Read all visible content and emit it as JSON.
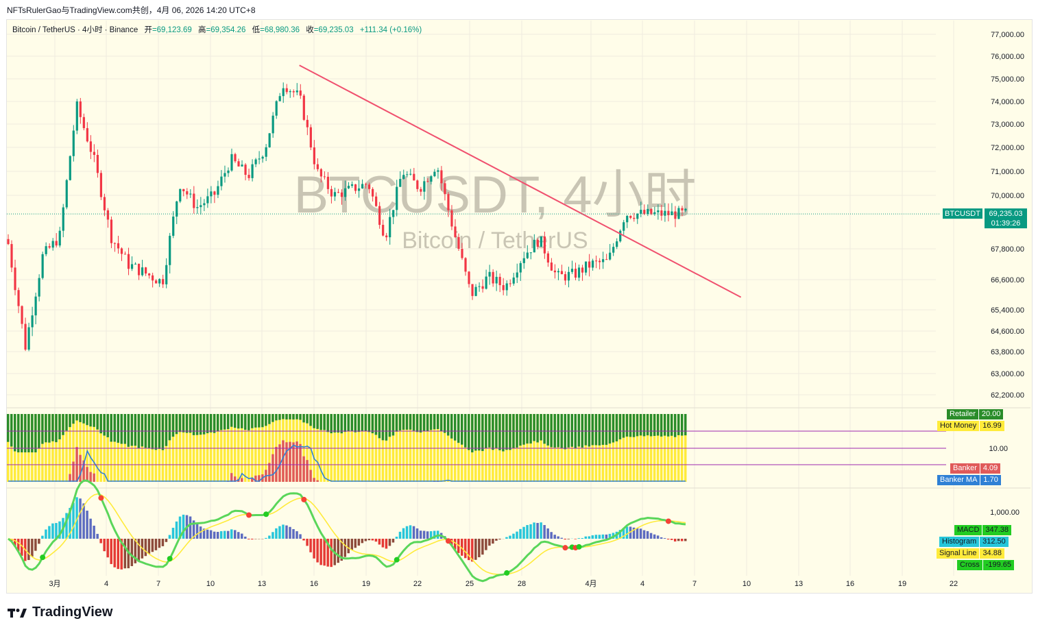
{
  "header": {
    "text": "NFTsRulerGao与TradingView.com共创，4月 06, 2026 14:20 UTC+8"
  },
  "legend": {
    "symbol": "Bitcoin / TetherUS · 4小时 · Binance",
    "open_label": "开",
    "open": "=69,123.69",
    "high_label": "高",
    "high": "=69,354.26",
    "low_label": "低",
    "low": "=68,980.36",
    "close_label": "收",
    "close": "=69,235.03",
    "change": "+111.34 (+0.16%)"
  },
  "watermark": {
    "title": "BTCUSDT, 4小时",
    "subtitle": "Bitcoin / TetherUS"
  },
  "footer": {
    "brand": "TradingView"
  },
  "colors": {
    "up": "#089981",
    "down": "#f23645",
    "trendline": "#f0506e",
    "background": "#fffde9",
    "retailer": "#2a8c2a",
    "hot_money": "#ffeb3b",
    "banker": "#e05a5a",
    "banker_ma": "#2f80d5"
  },
  "chart_data": [
    {
      "type": "candlestick",
      "title": "Bitcoin / TetherUS · 4小时 · Binance",
      "timeframe": "4h",
      "y_axis_ticks": [
        77000,
        76000,
        75000,
        74000,
        73000,
        72000,
        71000,
        70000,
        67800,
        66600,
        65400,
        64600,
        63800,
        63000,
        62200
      ],
      "y_axis_labels": [
        "77,000.00",
        "76,000.00",
        "75,000.00",
        "74,000.00",
        "73,000.00",
        "72,000.00",
        "71,000.00",
        "70,000.00",
        "67,800.00",
        "66,600.00",
        "65,400.00",
        "64,600.00",
        "63,800.00",
        "63,000.00",
        "62,200.00"
      ],
      "x_axis_labels": [
        "3月",
        "4",
        "7",
        "10",
        "13",
        "16",
        "19",
        "22",
        "25",
        "28",
        "4月",
        "4",
        "7",
        "10",
        "13",
        "16",
        "19",
        "22"
      ],
      "last_price_label": {
        "symbol": "BTCUSDT",
        "price": "69,235.03",
        "countdown": "01:39:26"
      },
      "approx_path": [
        {
          "x": "3月1",
          "y": 68000
        },
        {
          "x": "3月2",
          "y": 64000
        },
        {
          "x": "3月3",
          "y": 67500
        },
        {
          "x": "3月4",
          "y": 68300
        },
        {
          "x": "3月5",
          "y": 73800
        },
        {
          "x": "3月6",
          "y": 71500
        },
        {
          "x": "3月7",
          "y": 68300
        },
        {
          "x": "3月8",
          "y": 67200
        },
        {
          "x": "3月10",
          "y": 66500
        },
        {
          "x": "3月11",
          "y": 70500
        },
        {
          "x": "3月12",
          "y": 69500
        },
        {
          "x": "3月13",
          "y": 70000
        },
        {
          "x": "3月14",
          "y": 71500
        },
        {
          "x": "3月15",
          "y": 70800
        },
        {
          "x": "3月16",
          "y": 72000
        },
        {
          "x": "3月17",
          "y": 74800
        },
        {
          "x": "3月18",
          "y": 74200
        },
        {
          "x": "3月19",
          "y": 71000
        },
        {
          "x": "3月20",
          "y": 70000
        },
        {
          "x": "3月22",
          "y": 70500
        },
        {
          "x": "3月23",
          "y": 68300
        },
        {
          "x": "3月24",
          "y": 71000
        },
        {
          "x": "3月25",
          "y": 70300
        },
        {
          "x": "3月26",
          "y": 71300
        },
        {
          "x": "3月27",
          "y": 68500
        },
        {
          "x": "3月28",
          "y": 66000
        },
        {
          "x": "3月29",
          "y": 66700
        },
        {
          "x": "3月30",
          "y": 66300
        },
        {
          "x": "3月31",
          "y": 67500
        },
        {
          "x": "4月1",
          "y": 68200
        },
        {
          "x": "4月2",
          "y": 66700
        },
        {
          "x": "4月3",
          "y": 66800
        },
        {
          "x": "4月4",
          "y": 67200
        },
        {
          "x": "4月5",
          "y": 67300
        },
        {
          "x": "4月6",
          "y": 69235
        }
      ],
      "trendline": {
        "from": {
          "x": "3月16",
          "y": 75600
        },
        "to": {
          "x": "4月10",
          "y": 65900
        }
      }
    },
    {
      "type": "bar",
      "title": "",
      "series": [
        {
          "name": "Retailer",
          "last": "20.00"
        },
        {
          "name": "Hot Money",
          "last": "16.99"
        },
        {
          "name": "Banker",
          "last": "4.09"
        },
        {
          "name": "Banker MA",
          "last": "1.70"
        }
      ],
      "reference_lines": [
        16.99,
        10.0,
        4.09
      ],
      "y_axis_labels": [
        "10.00"
      ]
    },
    {
      "type": "bar",
      "title": "",
      "series": [
        {
          "name": "MACD",
          "last": "347.38"
        },
        {
          "name": "Histogram",
          "last": "312.50"
        },
        {
          "name": "Signal Line",
          "last": "34.88"
        },
        {
          "name": "Cross",
          "last": "-199.65"
        }
      ],
      "y_axis_labels": [
        "1,000.00"
      ]
    }
  ],
  "labels": {
    "retailer": {
      "name": "Retailer",
      "value": "20.00"
    },
    "hot_money": {
      "name": "Hot Money",
      "value": "16.99"
    },
    "banker": {
      "name": "Banker",
      "value": "4.09"
    },
    "banker_ma": {
      "name": "Banker MA",
      "value": "1.70"
    },
    "macd": {
      "name": "MACD",
      "value": "347.38"
    },
    "histogram": {
      "name": "Histogram",
      "value": "312.50"
    },
    "signal": {
      "name": "Signal Line",
      "value": "34.88"
    },
    "cross": {
      "name": "Cross",
      "value": "-199.65"
    }
  }
}
